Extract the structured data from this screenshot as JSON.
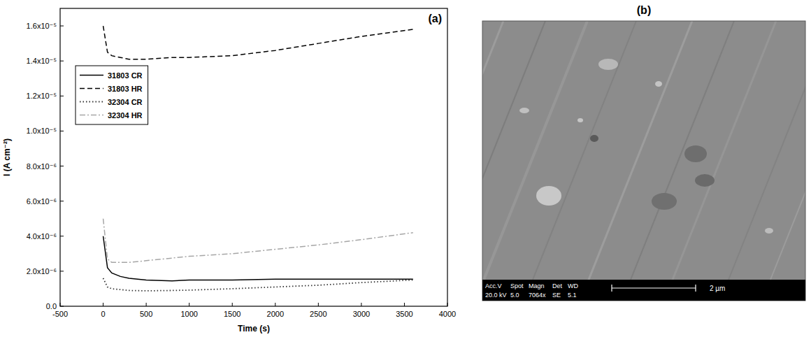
{
  "chart_data": {
    "type": "line",
    "panel_label": "(a)",
    "x_label": "Time (s)",
    "y_label": "I (A cm⁻²)",
    "x": [
      0,
      50,
      100,
      200,
      300,
      500,
      800,
      1000,
      1500,
      2000,
      2500,
      3000,
      3600
    ],
    "series": [
      {
        "name": "31803 CR",
        "color": "#000000",
        "line_style": "solid",
        "values": [
          4e-06,
          2.2e-06,
          1.9e-06,
          1.7e-06,
          1.6e-06,
          1.5e-06,
          1.45e-06,
          1.5e-06,
          1.5e-06,
          1.55e-06,
          1.55e-06,
          1.55e-06,
          1.55e-06
        ]
      },
      {
        "name": "31803 HR",
        "color": "#000000",
        "line_style": "dashed",
        "values": [
          1.6e-05,
          1.45e-05,
          1.43e-05,
          1.42e-05,
          1.41e-05,
          1.41e-05,
          1.42e-05,
          1.42e-05,
          1.43e-05,
          1.46e-05,
          1.5e-05,
          1.54e-05,
          1.58e-05
        ]
      },
      {
        "name": "32304 CR",
        "color": "#333333",
        "line_style": "dotted",
        "values": [
          1.6e-06,
          1.1e-06,
          1e-06,
          9.5e-07,
          9e-07,
          8.8e-07,
          9e-07,
          9.2e-07,
          1e-06,
          1.1e-06,
          1.2e-06,
          1.35e-06,
          1.5e-06
        ]
      },
      {
        "name": "32304 HR",
        "color": "#a6a6a6",
        "line_style": "dashdot",
        "values": [
          5e-06,
          2.7e-06,
          2.5e-06,
          2.5e-06,
          2.5e-06,
          2.6e-06,
          2.75e-06,
          2.85e-06,
          3e-06,
          3.25e-06,
          3.5e-06,
          3.8e-06,
          4.2e-06
        ]
      }
    ],
    "xlim": [
      -500,
      4000
    ],
    "xticks": [
      -500,
      0,
      500,
      1000,
      1500,
      2000,
      2500,
      3000,
      3500,
      4000
    ],
    "ylim": [
      0,
      1.7e-05
    ],
    "yticks": [
      {
        "value": 0,
        "label": "0.0"
      },
      {
        "value": 2e-06,
        "label": "2.0x10⁻⁶"
      },
      {
        "value": 4e-06,
        "label": "4.0x10⁻⁶"
      },
      {
        "value": 6e-06,
        "label": "6.0x10⁻⁶"
      },
      {
        "value": 8e-06,
        "label": "8.0x10⁻⁶"
      },
      {
        "value": 1e-05,
        "label": "1.0x10⁻⁵"
      },
      {
        "value": 1.2e-05,
        "label": "1.2x10⁻⁵"
      },
      {
        "value": 1.4e-05,
        "label": "1.4x10⁻⁵"
      },
      {
        "value": 1.6e-05,
        "label": "1.6x10⁻⁵"
      }
    ],
    "grid": false,
    "legend": "upper left"
  },
  "image_panel": {
    "panel_label": "(b)",
    "info_header": [
      "Acc.V",
      "Spot",
      "Magn",
      "Det",
      "WD"
    ],
    "info_values": [
      "20.0 kV",
      "5.0",
      "7064x",
      "SE",
      "5.1"
    ],
    "scale_bar": "2 µm"
  }
}
